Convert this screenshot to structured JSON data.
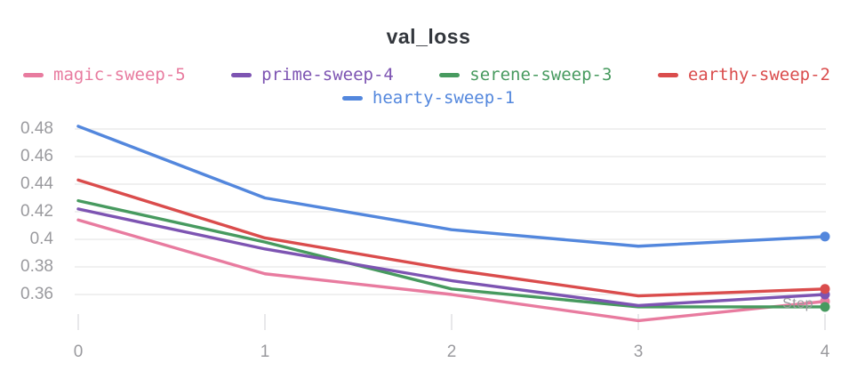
{
  "chart_data": {
    "type": "line",
    "title": "val_loss",
    "xlabel": "Step",
    "ylabel": "",
    "x": [
      0,
      1,
      2,
      3,
      4
    ],
    "x_tick_labels": [
      "0",
      "1",
      "2",
      "3",
      "4"
    ],
    "y_tick_labels": [
      "0.48",
      "0.46",
      "0.44",
      "0.42",
      "0.4",
      "0.38",
      "0.36"
    ],
    "xlim": [
      0,
      4
    ],
    "ylim": [
      0.335,
      0.485
    ],
    "grid": true,
    "legend_position": "top",
    "end_markers": true,
    "series": [
      {
        "name": "magic-sweep-5",
        "color": "#E87B9F",
        "values": [
          0.414,
          0.375,
          0.36,
          0.341,
          0.355
        ]
      },
      {
        "name": "prime-sweep-4",
        "color": "#7D54B2",
        "values": [
          0.422,
          0.393,
          0.37,
          0.352,
          0.36
        ]
      },
      {
        "name": "serene-sweep-3",
        "color": "#479A5F",
        "values": [
          0.428,
          0.398,
          0.364,
          0.351,
          0.351
        ]
      },
      {
        "name": "earthy-sweep-2",
        "color": "#DA4C4C",
        "values": [
          0.443,
          0.401,
          0.378,
          0.359,
          0.364
        ]
      },
      {
        "name": "hearty-sweep-1",
        "color": "#5387DD",
        "values": [
          0.482,
          0.43,
          0.407,
          0.395,
          0.402
        ]
      }
    ]
  },
  "colors": {
    "grid": "#ECECEC",
    "tick": "#E2E2E4",
    "axis_label": "#9A9A9E",
    "title": "#33373D",
    "background": "#FFFFFF"
  }
}
